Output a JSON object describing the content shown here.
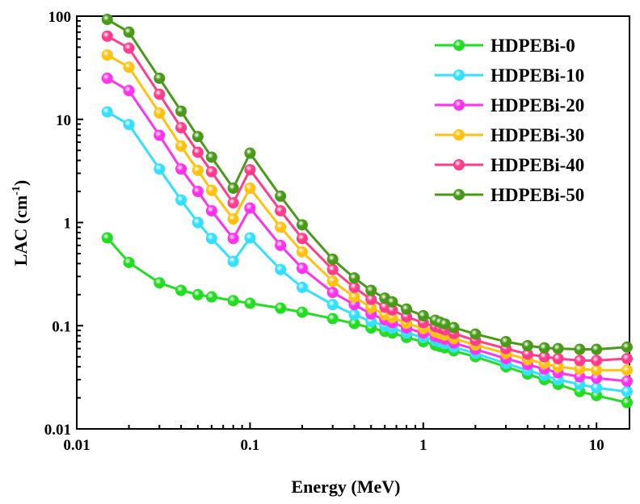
{
  "chart_data": {
    "type": "line",
    "title": "",
    "xlabel": "Energy (MeV)",
    "ylabel": {
      "prefix": "LAC (cm",
      "sup": "-1",
      "suffix": ")"
    },
    "xscale": "log",
    "yscale": "log",
    "xlim": [
      0.01,
      15.5
    ],
    "ylim": [
      0.01,
      100
    ],
    "xticks": [
      {
        "value": 0.01,
        "label": "0.01"
      },
      {
        "value": 0.1,
        "label": "0.1"
      },
      {
        "value": 1,
        "label": "1"
      },
      {
        "value": 10,
        "label": "10"
      }
    ],
    "yticks": [
      {
        "value": 0.01,
        "label": "0.01"
      },
      {
        "value": 0.1,
        "label": "0.1"
      },
      {
        "value": 1,
        "label": "1"
      },
      {
        "value": 10,
        "label": "10"
      },
      {
        "value": 100,
        "label": "100"
      }
    ],
    "grid": false,
    "legend_position": "top-right",
    "x": [
      0.015,
      0.02,
      0.03,
      0.04,
      0.05,
      0.06,
      0.08,
      0.1,
      0.15,
      0.2,
      0.3,
      0.4,
      0.5,
      0.6,
      0.662,
      0.8,
      1.0,
      1.173,
      1.25,
      1.332,
      1.5,
      2.0,
      3.0,
      4.0,
      5.0,
      6.0,
      8.0,
      10.0,
      15.0
    ],
    "series": [
      {
        "name": "HDPEBi-0",
        "color": "#22dd22",
        "values": [
          0.71,
          0.41,
          0.26,
          0.22,
          0.2,
          0.19,
          0.175,
          0.165,
          0.148,
          0.135,
          0.117,
          0.105,
          0.095,
          0.088,
          0.085,
          0.077,
          0.07,
          0.065,
          0.063,
          0.061,
          0.057,
          0.05,
          0.04,
          0.034,
          0.03,
          0.027,
          0.023,
          0.021,
          0.018
        ]
      },
      {
        "name": "HDPEBi-10",
        "color": "#33e0ff",
        "values": [
          11.8,
          8.9,
          3.3,
          1.65,
          1.0,
          0.7,
          0.42,
          0.71,
          0.35,
          0.235,
          0.16,
          0.128,
          0.11,
          0.1,
          0.095,
          0.085,
          0.077,
          0.072,
          0.07,
          0.067,
          0.062,
          0.054,
          0.043,
          0.037,
          0.033,
          0.03,
          0.027,
          0.025,
          0.023
        ]
      },
      {
        "name": "HDPEBi-20",
        "color": "#ff33ee",
        "values": [
          25.0,
          19.0,
          7.0,
          3.3,
          2.0,
          1.3,
          0.7,
          1.38,
          0.6,
          0.36,
          0.21,
          0.16,
          0.13,
          0.114,
          0.107,
          0.095,
          0.085,
          0.079,
          0.077,
          0.074,
          0.068,
          0.059,
          0.048,
          0.042,
          0.038,
          0.035,
          0.032,
          0.031,
          0.029
        ]
      },
      {
        "name": "HDPEBi-30",
        "color": "#ffc20e",
        "values": [
          42.0,
          32.0,
          11.5,
          5.5,
          3.2,
          2.05,
          1.08,
          2.15,
          0.9,
          0.52,
          0.27,
          0.19,
          0.15,
          0.128,
          0.12,
          0.106,
          0.094,
          0.087,
          0.084,
          0.081,
          0.075,
          0.065,
          0.054,
          0.047,
          0.043,
          0.04,
          0.038,
          0.037,
          0.037
        ]
      },
      {
        "name": "HDPEBi-40",
        "color": "#ff3d8c",
        "values": [
          64.0,
          49.0,
          17.5,
          8.3,
          4.8,
          3.1,
          1.55,
          3.25,
          1.3,
          0.7,
          0.35,
          0.235,
          0.18,
          0.152,
          0.142,
          0.122,
          0.107,
          0.098,
          0.095,
          0.091,
          0.084,
          0.072,
          0.06,
          0.053,
          0.05,
          0.048,
          0.046,
          0.046,
          0.048
        ]
      },
      {
        "name": "HDPEBi-50",
        "color": "#4a9a1a",
        "values": [
          93.0,
          70.0,
          25.0,
          12.0,
          6.8,
          4.3,
          2.15,
          4.7,
          1.8,
          0.95,
          0.44,
          0.29,
          0.22,
          0.185,
          0.17,
          0.145,
          0.125,
          0.113,
          0.108,
          0.104,
          0.096,
          0.083,
          0.07,
          0.064,
          0.061,
          0.06,
          0.059,
          0.059,
          0.062
        ]
      }
    ]
  }
}
